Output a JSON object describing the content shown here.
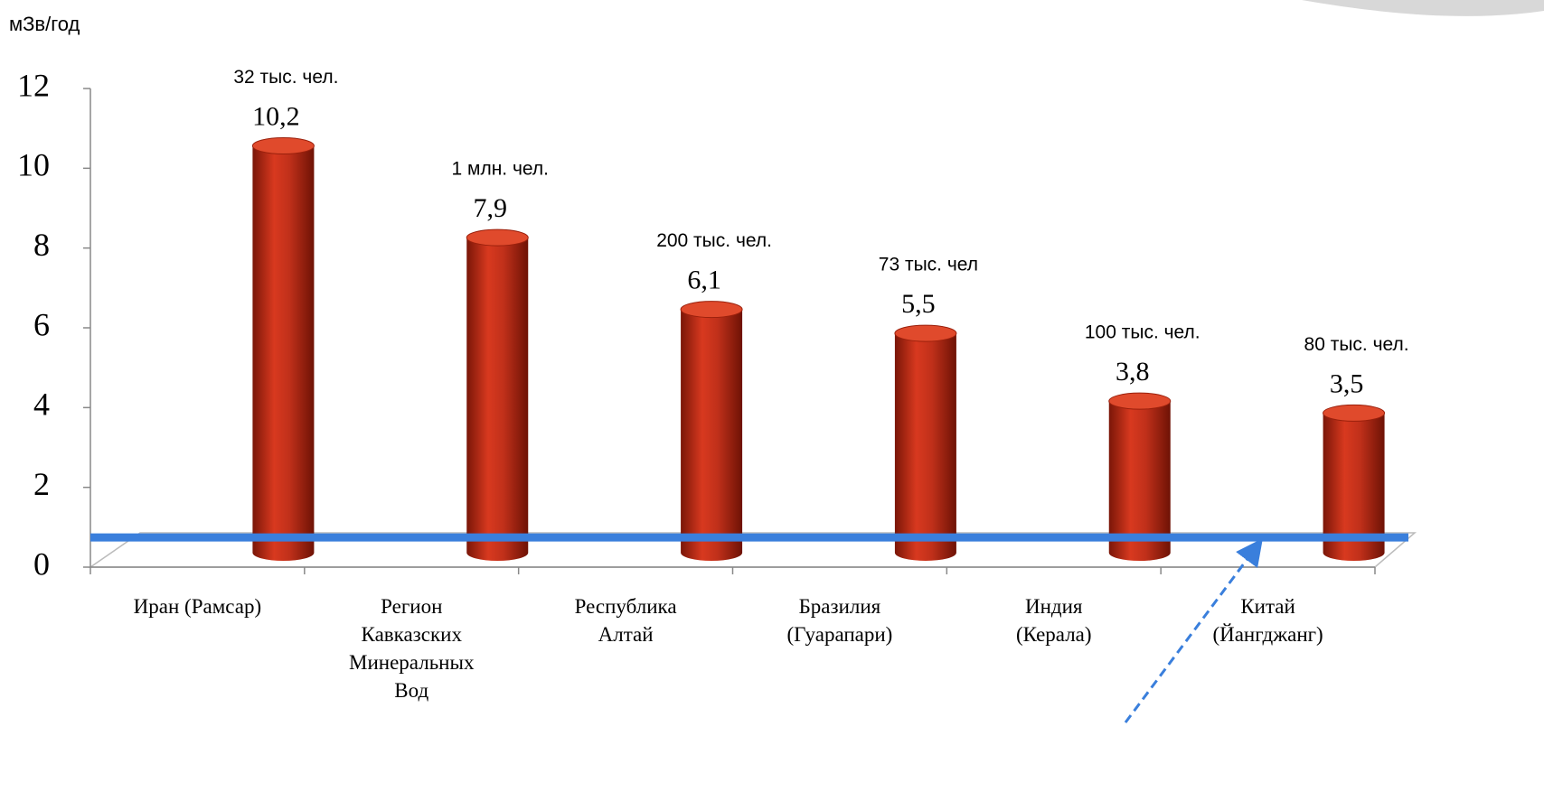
{
  "chart_data": {
    "type": "bar",
    "y_axis_label": "мЗв/год",
    "categories": [
      "Иран (Рамсар)",
      "Регион\nКавказских\nМинеральных\nВод",
      "Республика\nАлтай",
      "Бразилия\n(Гуарапари)",
      "Индия\n(Керала)",
      "Китай\n(Йангджанг)"
    ],
    "values": [
      10.2,
      7.9,
      6.1,
      5.5,
      3.8,
      3.5
    ],
    "value_labels": [
      "10,2",
      "7,9",
      "6,1",
      "5,5",
      "3,8",
      "3,5"
    ],
    "annotations": [
      "32 тыс. чел.",
      "1 млн. чел.",
      "200 тыс. чел.",
      "73 тыс. чел",
      "100 тыс. чел.",
      "80 тыс. чел."
    ],
    "color": "#c0301a",
    "reference_line": {
      "value": 0.7,
      "color": "#3a7fdc"
    },
    "ylim": [
      0,
      12
    ],
    "yticks": [
      0,
      2,
      4,
      6,
      8,
      10,
      12
    ]
  }
}
